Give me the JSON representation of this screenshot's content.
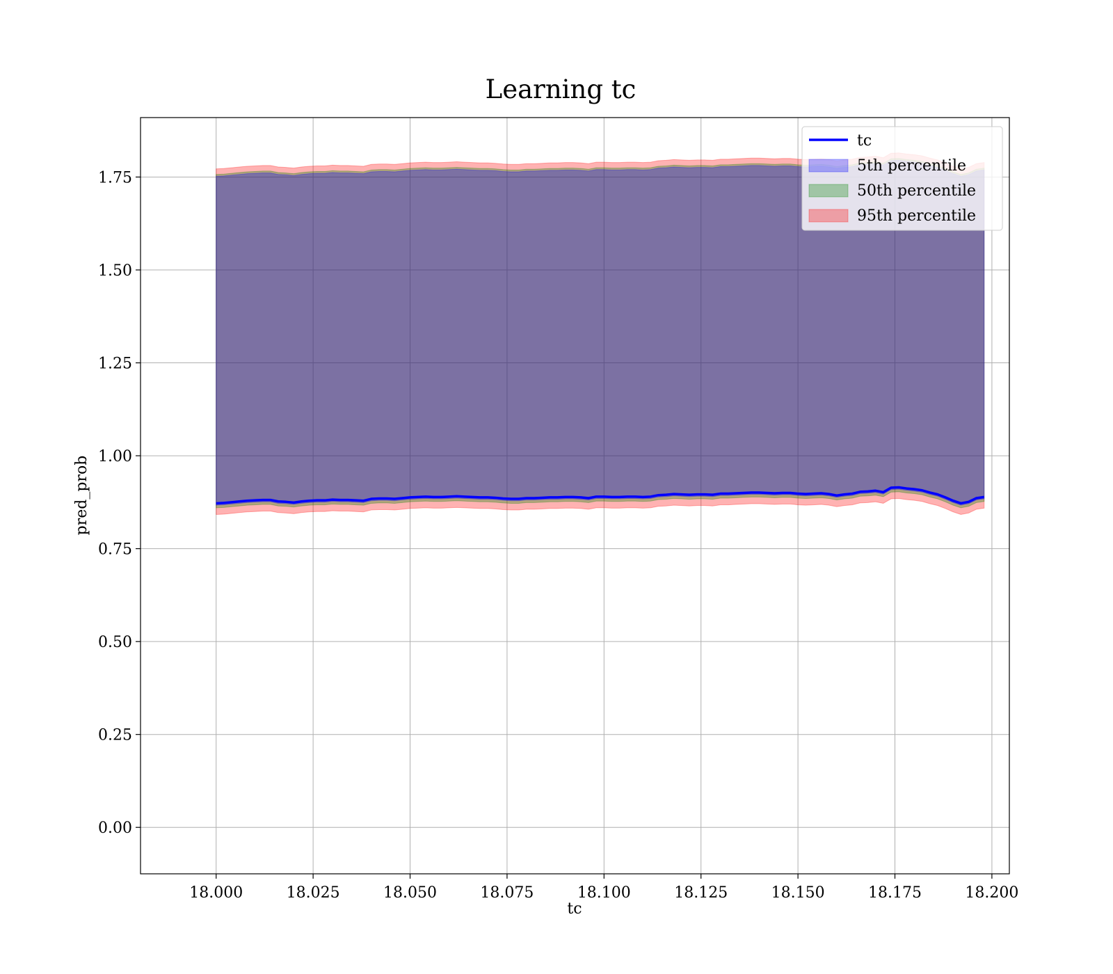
{
  "chart_data": {
    "type": "area",
    "title": "Learning tc",
    "xlabel": "tc",
    "ylabel": "pred_prob",
    "xlim": [
      17.9805,
      18.2045
    ],
    "ylim": [
      -0.125,
      1.91
    ],
    "xticks": [
      18.0,
      18.025,
      18.05,
      18.075,
      18.1,
      18.125,
      18.15,
      18.175,
      18.2
    ],
    "xtick_labels": [
      "18.000",
      "18.025",
      "18.050",
      "18.075",
      "18.100",
      "18.125",
      "18.150",
      "18.175",
      "18.200"
    ],
    "yticks": [
      0.0,
      0.25,
      0.5,
      0.75,
      1.0,
      1.25,
      1.5,
      1.75
    ],
    "ytick_labels": [
      "0.00",
      "0.25",
      "0.50",
      "0.75",
      "1.00",
      "1.25",
      "1.50",
      "1.75"
    ],
    "grid": true,
    "legend_position": "top-right",
    "colors": {
      "line": "#0000ff",
      "band_5th": "#0000ff",
      "band_50th": "#008000",
      "band_95th": "#ff0000",
      "grid": "#b0b0b0"
    },
    "series": [
      {
        "name": "tc",
        "kind": "line",
        "x": [
          18.0,
          18.002,
          18.004,
          18.006,
          18.008,
          18.01,
          18.012,
          18.014,
          18.016,
          18.018,
          18.02,
          18.022,
          18.024,
          18.026,
          18.028,
          18.03,
          18.032,
          18.034,
          18.036,
          18.038,
          18.04,
          18.042,
          18.044,
          18.046,
          18.048,
          18.05,
          18.052,
          18.054,
          18.056,
          18.058,
          18.06,
          18.062,
          18.064,
          18.066,
          18.068,
          18.07,
          18.072,
          18.074,
          18.076,
          18.078,
          18.08,
          18.082,
          18.084,
          18.086,
          18.088,
          18.09,
          18.092,
          18.094,
          18.096,
          18.098,
          18.1,
          18.102,
          18.104,
          18.106,
          18.108,
          18.11,
          18.112,
          18.114,
          18.116,
          18.118,
          18.12,
          18.122,
          18.124,
          18.126,
          18.128,
          18.13,
          18.132,
          18.134,
          18.136,
          18.138,
          18.14,
          18.142,
          18.144,
          18.146,
          18.148,
          18.15,
          18.152,
          18.154,
          18.156,
          18.158,
          18.16,
          18.162,
          18.164,
          18.166,
          18.168,
          18.17,
          18.172,
          18.174,
          18.176,
          18.178,
          18.18,
          18.182,
          18.184,
          18.186,
          18.188,
          18.19,
          18.192,
          18.194,
          18.196,
          18.198
        ],
        "y": [
          0.872,
          0.873,
          0.875,
          0.877,
          0.879,
          0.88,
          0.881,
          0.881,
          0.877,
          0.876,
          0.874,
          0.877,
          0.879,
          0.88,
          0.88,
          0.882,
          0.881,
          0.881,
          0.88,
          0.879,
          0.884,
          0.885,
          0.885,
          0.884,
          0.886,
          0.888,
          0.889,
          0.89,
          0.889,
          0.889,
          0.89,
          0.891,
          0.89,
          0.889,
          0.888,
          0.888,
          0.887,
          0.885,
          0.884,
          0.884,
          0.886,
          0.886,
          0.887,
          0.888,
          0.888,
          0.889,
          0.889,
          0.888,
          0.886,
          0.89,
          0.89,
          0.889,
          0.889,
          0.89,
          0.89,
          0.889,
          0.89,
          0.894,
          0.895,
          0.897,
          0.896,
          0.895,
          0.896,
          0.896,
          0.895,
          0.898,
          0.898,
          0.899,
          0.9,
          0.901,
          0.901,
          0.9,
          0.899,
          0.9,
          0.9,
          0.898,
          0.897,
          0.898,
          0.899,
          0.897,
          0.893,
          0.896,
          0.898,
          0.903,
          0.904,
          0.906,
          0.902,
          0.914,
          0.915,
          0.912,
          0.91,
          0.907,
          0.901,
          0.896,
          0.888,
          0.879,
          0.872,
          0.876,
          0.886,
          0.889
        ]
      },
      {
        "name": "5th percentile",
        "kind": "band",
        "offset_lower": -0.005,
        "offset_upper": 0.88
      },
      {
        "name": "50th percentile",
        "kind": "band",
        "offset_lower": -0.012,
        "offset_upper": 0.885
      },
      {
        "name": "95th percentile",
        "kind": "band",
        "offset_lower": -0.03,
        "offset_upper": 0.9
      }
    ]
  }
}
